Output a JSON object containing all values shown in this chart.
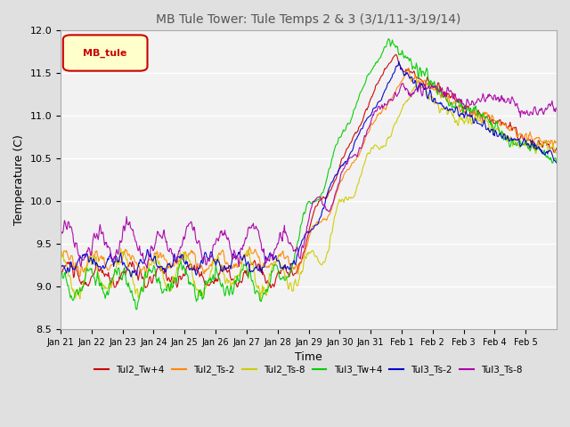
{
  "title": "MB Tule Tower: Tule Temps 2 & 3 (3/1/11-3/19/14)",
  "xlabel": "Time",
  "ylabel": "Temperature (C)",
  "ylim": [
    8.5,
    12.0
  ],
  "yticks": [
    8.5,
    9.0,
    9.5,
    10.0,
    10.5,
    11.0,
    11.5,
    12.0
  ],
  "xtick_labels": [
    "Jan 21",
    "Jan 22",
    "Jan 23",
    "Jan 24",
    "Jan 25",
    "Jan 26",
    "Jan 27",
    "Jan 28",
    "Jan 29",
    "Jan 30",
    "Jan 31",
    "Feb 1",
    "Feb 2",
    "Feb 3",
    "Feb 4",
    "Feb 5"
  ],
  "n_days": 16,
  "series_colors": [
    "#cc0000",
    "#ff8800",
    "#cccc00",
    "#00cc00",
    "#0000cc",
    "#aa00aa"
  ],
  "series_names": [
    "Tul2_Tw+4",
    "Tul2_Ts-2",
    "Tul2_Ts-8",
    "Tul3_Tw+4",
    "Tul3_Ts-2",
    "Tul3_Ts-8"
  ],
  "legend_label": "MB_tule",
  "background_color": "#e0e0e0",
  "plot_bg_color": "#f2f2f2",
  "grid_color": "#ffffff",
  "title_fontsize": 10,
  "axis_fontsize": 9,
  "tick_fontsize": 8
}
